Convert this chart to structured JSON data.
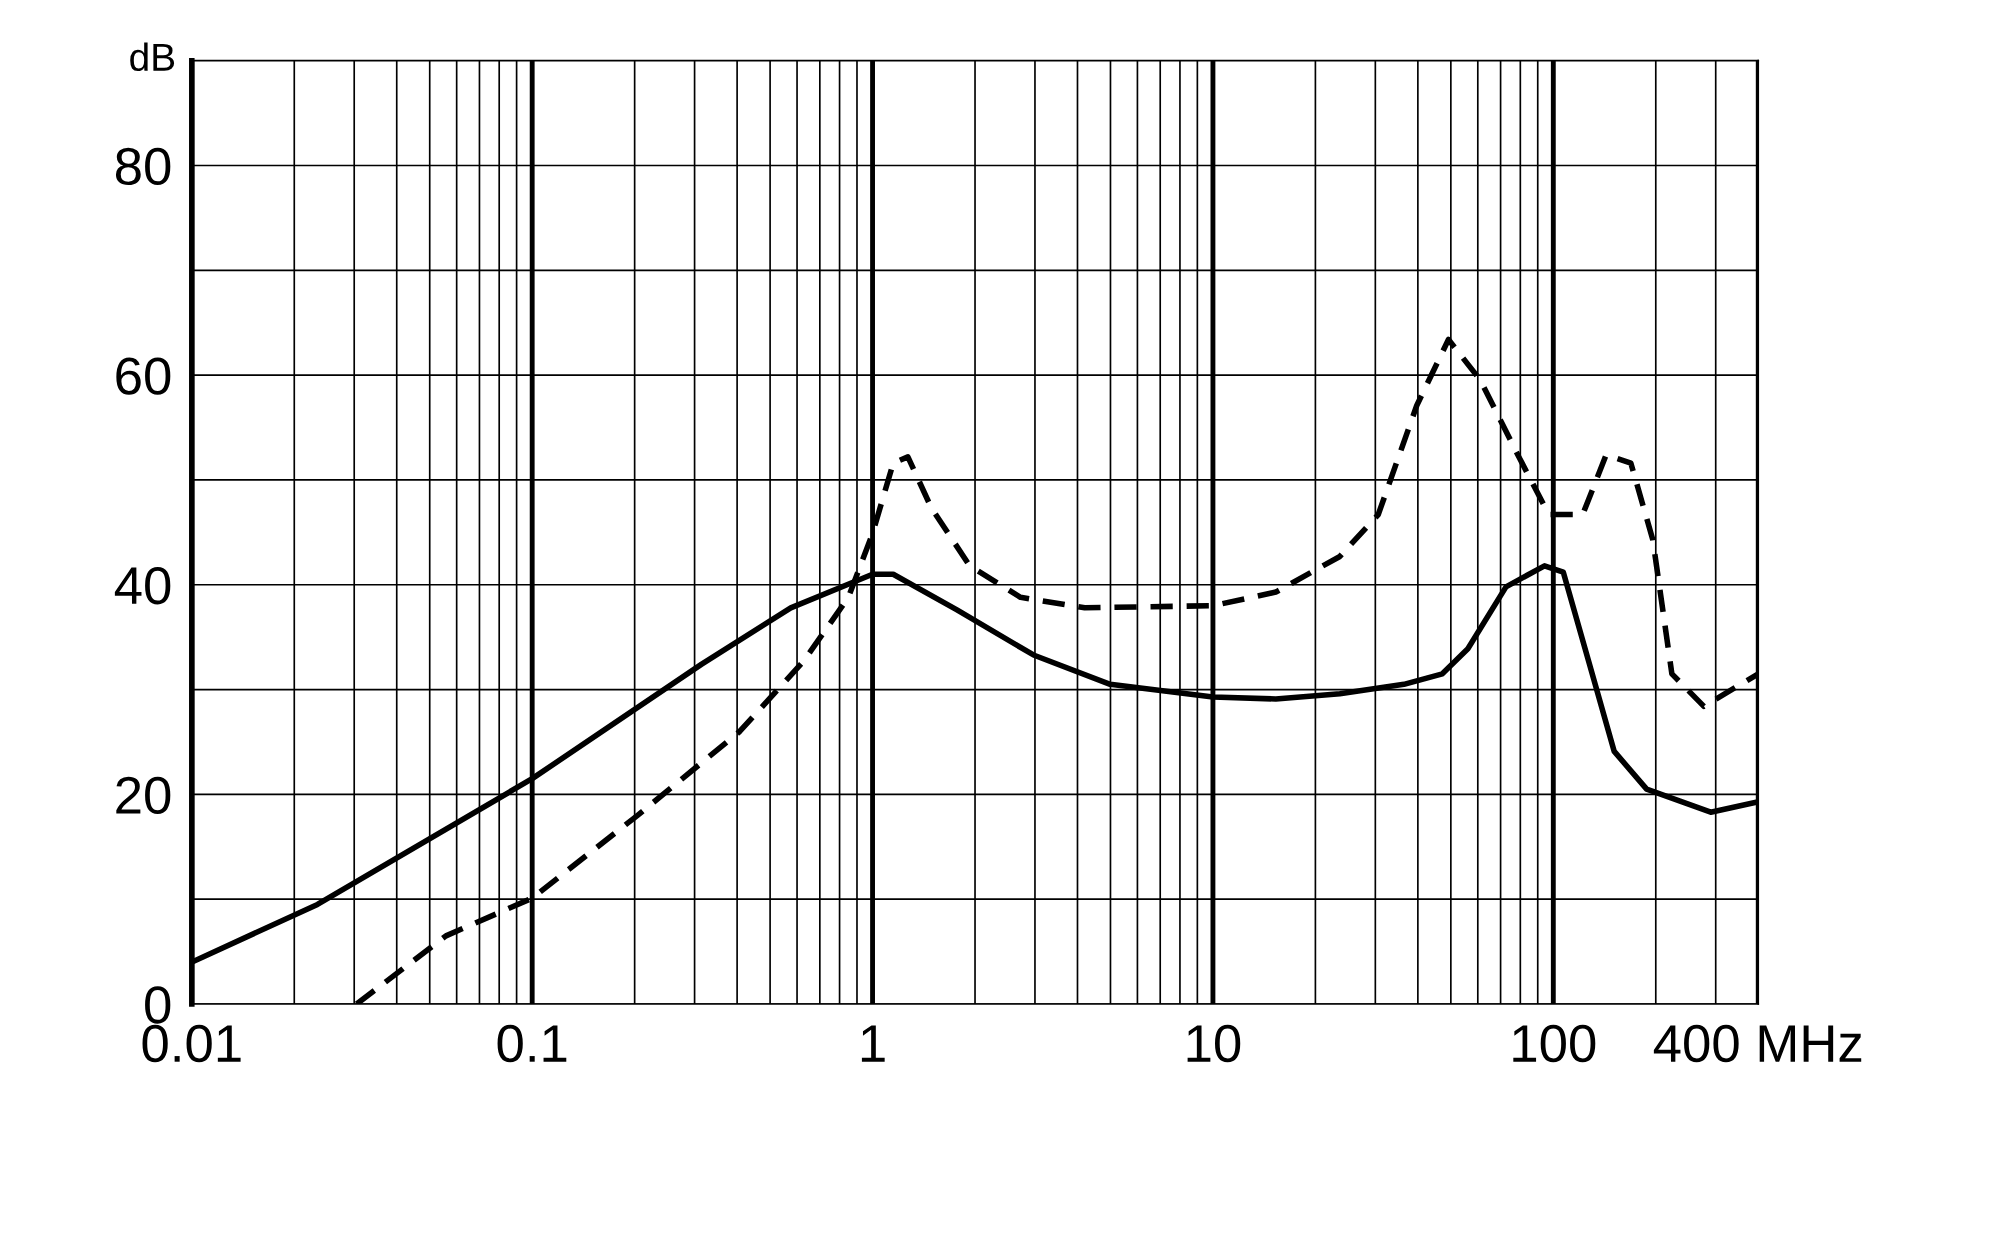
{
  "chart_data": {
    "type": "line",
    "ylabel": "dB",
    "log": "x",
    "grid": true,
    "legend": false,
    "xlim": [
      0.01,
      400
    ],
    "xticks": [
      0.01,
      0.1,
      1,
      10,
      100,
      {
        "value": 400,
        "label": "400 MHz"
      }
    ],
    "ylim": [
      0,
      90
    ],
    "yticks": [
      0,
      {
        "value": 10,
        "label": null
      },
      20,
      {
        "value": 30,
        "label": null
      },
      40,
      {
        "value": 50,
        "label": null
      },
      60,
      {
        "value": 70,
        "label": null
      },
      80
    ],
    "series": [
      {
        "color": "#000000",
        "line_style": "solid",
        "x": [
          0.01,
          0.0234,
          0.1,
          0.314,
          0.575,
          1,
          1.15,
          1.77,
          2.97,
          4.99,
          10,
          15.3,
          23.6,
          36.4,
          47.2,
          56.1,
          72.6,
          94.2,
          107,
          127,
          151,
          188,
          290,
          400
        ],
        "values": [
          4.0,
          9.5,
          21.5,
          32.4,
          37.8,
          41,
          41,
          37.6,
          33.3,
          30.5,
          29.3,
          29.1,
          29.6,
          30.5,
          31.5,
          33.9,
          39.8,
          41.8,
          41.2,
          32.7,
          24.1,
          20.5,
          18.3,
          19.3
        ]
      },
      {
        "color": "#000000",
        "line_style": "dashed",
        "x": [
          0.0305,
          0.0558,
          0.1,
          0.204,
          0.407,
          0.627,
          0.849,
          1,
          1.15,
          1.27,
          1.49,
          1.93,
          2.72,
          4.2,
          10,
          15.3,
          23.6,
          30.6,
          39.7,
          49.2,
          61.1,
          79.2,
          97,
          122,
          143,
          169,
          196,
          223,
          277,
          400
        ],
        "values": [
          0,
          6.5,
          10.1,
          18,
          26,
          32.7,
          38.8,
          44.9,
          51.6,
          52.2,
          47.3,
          41.8,
          38.8,
          37.8,
          38,
          39.3,
          42.7,
          46.7,
          57.1,
          63.4,
          59.5,
          52.2,
          46.7,
          46.7,
          52.4,
          51.6,
          44.3,
          31.5,
          28.4,
          31.5
        ]
      }
    ]
  }
}
